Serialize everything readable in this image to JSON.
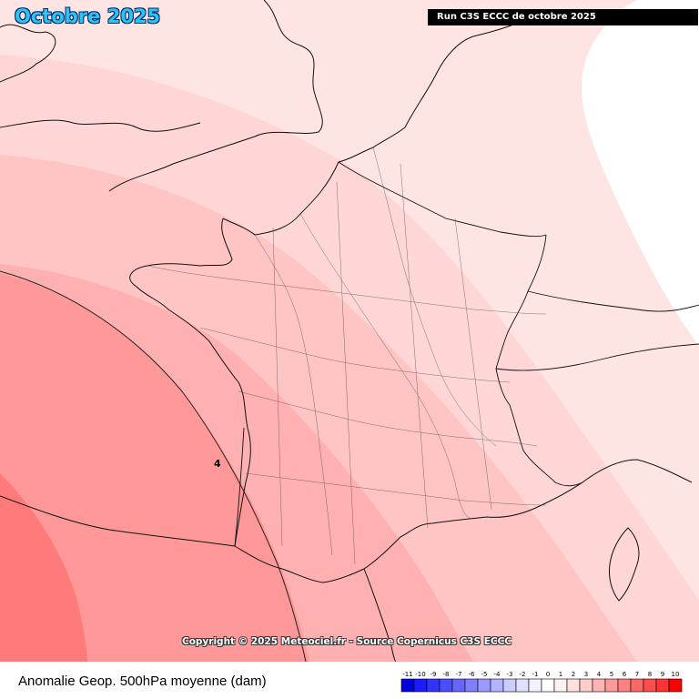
{
  "header": {
    "month_title": "Octobre 2025",
    "run_label": "Run C3S ECCC de octobre 2025"
  },
  "map": {
    "contour_label": "4",
    "field_colors": [
      "#ff7b7b",
      "#ff9898",
      "#ffb0b0",
      "#ffc4c4",
      "#ffd6d6",
      "#ffe4e4",
      "#ffffff"
    ]
  },
  "copyright": "Copyright © 2025 Meteociel.fr - Source Copernicus C3S ECCC",
  "footer": {
    "title": "Anomalie Geop. 500hPa moyenne (dam)"
  },
  "legend": {
    "ticks": [
      "-11",
      "-10",
      "-9",
      "-8",
      "-7",
      "-6",
      "-5",
      "-4",
      "-3",
      "-2",
      "-1",
      "0",
      "1",
      "2",
      "3",
      "4",
      "5",
      "6",
      "7",
      "8",
      "9",
      "10"
    ],
    "colors": [
      "#0000e0",
      "#1a1aff",
      "#3333ff",
      "#4d4dff",
      "#6666ff",
      "#8080ff",
      "#9999ff",
      "#b3b3ff",
      "#ccccff",
      "#e0e0ff",
      "#f2f2ff",
      "#ffffff",
      "#fff2f2",
      "#ffe0e0",
      "#ffcccc",
      "#ffb3b3",
      "#ff9999",
      "#ff8080",
      "#ff6666",
      "#ff4d4d",
      "#ff3333",
      "#ff0000"
    ]
  }
}
